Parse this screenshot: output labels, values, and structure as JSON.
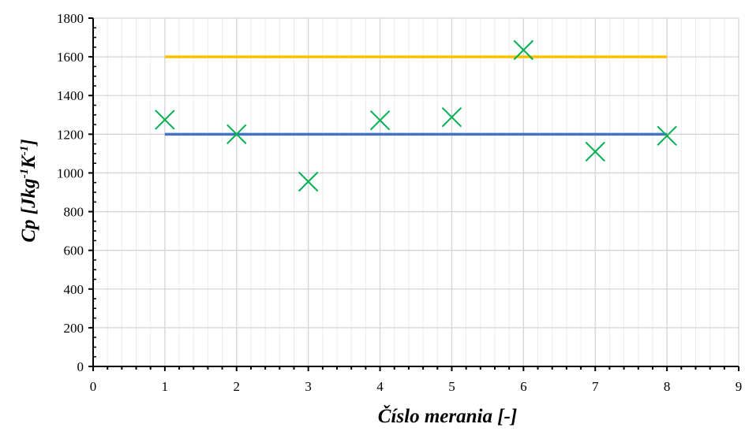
{
  "chart_data": {
    "type": "scatter",
    "title": "",
    "xlabel": "Číslo merania [-]",
    "ylabel": {
      "base": "Cp [Jkg",
      "sup1": "-1",
      "mid": "K",
      "sup2": "-1",
      "end": "]"
    },
    "xlim": [
      0,
      9
    ],
    "ylim": [
      0,
      1800
    ],
    "x_ticks": [
      0,
      1,
      2,
      3,
      4,
      5,
      6,
      7,
      8,
      9
    ],
    "y_ticks": [
      0,
      200,
      400,
      600,
      800,
      1000,
      1200,
      1400,
      1600,
      1800
    ],
    "grid": true,
    "legend": "none",
    "series": [
      {
        "kind": "line",
        "color": "#FFC000",
        "x": [
          1,
          8
        ],
        "y": [
          1600,
          1600
        ]
      },
      {
        "kind": "line",
        "color": "#4472C4",
        "x": [
          1,
          8
        ],
        "y": [
          1200,
          1200
        ]
      },
      {
        "kind": "markers",
        "marker": "x",
        "color": "#00B050",
        "x": [
          1,
          2,
          3,
          4,
          5,
          6,
          7,
          8
        ],
        "y": [
          1275,
          1200,
          955,
          1272,
          1288,
          1635,
          1110,
          1192
        ]
      }
    ]
  }
}
